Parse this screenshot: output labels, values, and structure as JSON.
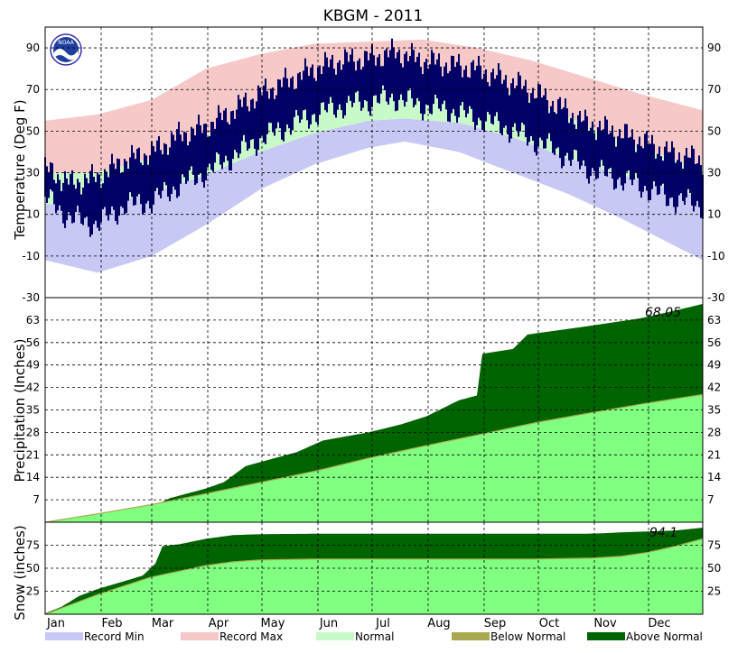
{
  "colors": {
    "record_min": "#c8c8f4",
    "record_max": "#f6c8c8",
    "normal": "#c8fac8",
    "observed": "#000066",
    "normal_precip": "#80ff80",
    "below_normal": "#a8a850",
    "above_normal": "#006400"
  },
  "logo": {
    "icon": "noaa-logo-icon",
    "text": "NOAA"
  },
  "chart_data": {
    "type": "area",
    "title": "KBGM - 2011",
    "months": [
      "Jan",
      "Feb",
      "Mar",
      "Apr",
      "May",
      "Jun",
      "Jul",
      "Aug",
      "Sep",
      "Oct",
      "Nov",
      "Dec"
    ],
    "temperature": {
      "ylabel": "Temperature (Deg F)",
      "ylim": [
        -30,
        100
      ],
      "yticks": [
        90,
        70,
        50,
        30,
        10,
        -10,
        -30
      ],
      "record_max": [
        {
          "day": 1,
          "value": 55
        },
        {
          "day": 30,
          "value": 58
        },
        {
          "day": 60,
          "value": 65
        },
        {
          "day": 90,
          "value": 80
        },
        {
          "day": 120,
          "value": 87
        },
        {
          "day": 150,
          "value": 92
        },
        {
          "day": 180,
          "value": 93
        },
        {
          "day": 210,
          "value": 94
        },
        {
          "day": 240,
          "value": 90
        },
        {
          "day": 270,
          "value": 84
        },
        {
          "day": 300,
          "value": 76
        },
        {
          "day": 330,
          "value": 68
        },
        {
          "day": 365,
          "value": 60
        }
      ],
      "normal_high": [
        {
          "day": 1,
          "value": 30
        },
        {
          "day": 30,
          "value": 30
        },
        {
          "day": 60,
          "value": 37
        },
        {
          "day": 90,
          "value": 48
        },
        {
          "day": 120,
          "value": 62
        },
        {
          "day": 150,
          "value": 71
        },
        {
          "day": 180,
          "value": 76
        },
        {
          "day": 200,
          "value": 78
        },
        {
          "day": 230,
          "value": 76
        },
        {
          "day": 260,
          "value": 68
        },
        {
          "day": 290,
          "value": 57
        },
        {
          "day": 320,
          "value": 45
        },
        {
          "day": 365,
          "value": 32
        }
      ],
      "normal_low": [
        {
          "day": 1,
          "value": 15
        },
        {
          "day": 30,
          "value": 14
        },
        {
          "day": 60,
          "value": 20
        },
        {
          "day": 90,
          "value": 29
        },
        {
          "day": 120,
          "value": 40
        },
        {
          "day": 150,
          "value": 49
        },
        {
          "day": 180,
          "value": 55
        },
        {
          "day": 200,
          "value": 56
        },
        {
          "day": 230,
          "value": 54
        },
        {
          "day": 260,
          "value": 47
        },
        {
          "day": 290,
          "value": 37
        },
        {
          "day": 320,
          "value": 29
        },
        {
          "day": 365,
          "value": 18
        }
      ],
      "record_min": [
        {
          "day": 1,
          "value": -12
        },
        {
          "day": 30,
          "value": -18
        },
        {
          "day": 60,
          "value": -10
        },
        {
          "day": 90,
          "value": 5
        },
        {
          "day": 120,
          "value": 22
        },
        {
          "day": 150,
          "value": 34
        },
        {
          "day": 180,
          "value": 42
        },
        {
          "day": 200,
          "value": 45
        },
        {
          "day": 230,
          "value": 40
        },
        {
          "day": 260,
          "value": 30
        },
        {
          "day": 290,
          "value": 20
        },
        {
          "day": 320,
          "value": 8
        },
        {
          "day": 365,
          "value": -12
        }
      ],
      "observed_high": [
        {
          "day": 1,
          "value": 32
        },
        {
          "day": 15,
          "value": 25
        },
        {
          "day": 30,
          "value": 28
        },
        {
          "day": 45,
          "value": 36
        },
        {
          "day": 60,
          "value": 40
        },
        {
          "day": 75,
          "value": 48
        },
        {
          "day": 90,
          "value": 52
        },
        {
          "day": 105,
          "value": 60
        },
        {
          "day": 120,
          "value": 68
        },
        {
          "day": 135,
          "value": 74
        },
        {
          "day": 150,
          "value": 80
        },
        {
          "day": 165,
          "value": 84
        },
        {
          "day": 180,
          "value": 85
        },
        {
          "day": 195,
          "value": 88
        },
        {
          "day": 210,
          "value": 84
        },
        {
          "day": 225,
          "value": 82
        },
        {
          "day": 240,
          "value": 80
        },
        {
          "day": 255,
          "value": 75
        },
        {
          "day": 270,
          "value": 70
        },
        {
          "day": 285,
          "value": 62
        },
        {
          "day": 300,
          "value": 54
        },
        {
          "day": 315,
          "value": 50
        },
        {
          "day": 330,
          "value": 46
        },
        {
          "day": 345,
          "value": 40
        },
        {
          "day": 365,
          "value": 36
        }
      ],
      "observed_low": [
        {
          "day": 1,
          "value": 18
        },
        {
          "day": 15,
          "value": 8
        },
        {
          "day": 30,
          "value": 5
        },
        {
          "day": 45,
          "value": 14
        },
        {
          "day": 60,
          "value": 16
        },
        {
          "day": 75,
          "value": 24
        },
        {
          "day": 90,
          "value": 30
        },
        {
          "day": 105,
          "value": 38
        },
        {
          "day": 120,
          "value": 46
        },
        {
          "day": 135,
          "value": 52
        },
        {
          "day": 150,
          "value": 58
        },
        {
          "day": 165,
          "value": 62
        },
        {
          "day": 180,
          "value": 64
        },
        {
          "day": 195,
          "value": 66
        },
        {
          "day": 210,
          "value": 62
        },
        {
          "day": 225,
          "value": 60
        },
        {
          "day": 240,
          "value": 56
        },
        {
          "day": 255,
          "value": 52
        },
        {
          "day": 270,
          "value": 46
        },
        {
          "day": 285,
          "value": 40
        },
        {
          "day": 300,
          "value": 32
        },
        {
          "day": 315,
          "value": 28
        },
        {
          "day": 330,
          "value": 24
        },
        {
          "day": 345,
          "value": 18
        },
        {
          "day": 365,
          "value": 14
        }
      ]
    },
    "precipitation": {
      "ylabel": "Precipitation (Inches)",
      "ylim": [
        0,
        70
      ],
      "yticks": [
        63,
        56,
        49,
        42,
        35,
        28,
        21,
        14,
        7
      ],
      "total_label": "68.05",
      "observed_cumulative": [
        {
          "day": 1,
          "value": 0
        },
        {
          "day": 15,
          "value": 0.8
        },
        {
          "day": 31,
          "value": 2.0
        },
        {
          "day": 45,
          "value": 3.8
        },
        {
          "day": 59,
          "value": 4.5
        },
        {
          "day": 70,
          "value": 7.5
        },
        {
          "day": 90,
          "value": 10.5
        },
        {
          "day": 100,
          "value": 12.5
        },
        {
          "day": 112,
          "value": 17.5
        },
        {
          "day": 125,
          "value": 19.5
        },
        {
          "day": 140,
          "value": 21.8
        },
        {
          "day": 155,
          "value": 25.5
        },
        {
          "day": 165,
          "value": 26.5
        },
        {
          "day": 180,
          "value": 28.0
        },
        {
          "day": 198,
          "value": 30.5
        },
        {
          "day": 212,
          "value": 33.0
        },
        {
          "day": 230,
          "value": 38.0
        },
        {
          "day": 240,
          "value": 39.5
        },
        {
          "day": 243,
          "value": 52.5
        },
        {
          "day": 260,
          "value": 54.0
        },
        {
          "day": 268,
          "value": 58.5
        },
        {
          "day": 300,
          "value": 61.0
        },
        {
          "day": 330,
          "value": 63.5
        },
        {
          "day": 350,
          "value": 66.0
        },
        {
          "day": 365,
          "value": 68.05
        }
      ],
      "normal_cumulative": [
        {
          "day": 1,
          "value": 0
        },
        {
          "day": 31,
          "value": 2.7
        },
        {
          "day": 59,
          "value": 5.4
        },
        {
          "day": 90,
          "value": 8.9
        },
        {
          "day": 120,
          "value": 12.4
        },
        {
          "day": 151,
          "value": 16.0
        },
        {
          "day": 181,
          "value": 20.1
        },
        {
          "day": 212,
          "value": 23.9
        },
        {
          "day": 243,
          "value": 27.5
        },
        {
          "day": 273,
          "value": 31.1
        },
        {
          "day": 304,
          "value": 34.2
        },
        {
          "day": 334,
          "value": 37.1
        },
        {
          "day": 365,
          "value": 39.8
        }
      ]
    },
    "snow": {
      "ylabel": "Snow (inches)",
      "ylim": [
        0,
        100
      ],
      "yticks": [
        75,
        50,
        25
      ],
      "total_label": "94.1",
      "observed_cumulative": [
        {
          "day": 1,
          "value": 1
        },
        {
          "day": 10,
          "value": 8
        },
        {
          "day": 20,
          "value": 20
        },
        {
          "day": 31,
          "value": 28
        },
        {
          "day": 45,
          "value": 36
        },
        {
          "day": 55,
          "value": 42
        },
        {
          "day": 62,
          "value": 55
        },
        {
          "day": 66,
          "value": 74
        },
        {
          "day": 75,
          "value": 76
        },
        {
          "day": 90,
          "value": 82
        },
        {
          "day": 105,
          "value": 86
        },
        {
          "day": 120,
          "value": 87
        },
        {
          "day": 150,
          "value": 87.5
        },
        {
          "day": 300,
          "value": 87.5
        },
        {
          "day": 310,
          "value": 88
        },
        {
          "day": 320,
          "value": 89
        },
        {
          "day": 335,
          "value": 90
        },
        {
          "day": 350,
          "value": 91
        },
        {
          "day": 365,
          "value": 94.1
        }
      ],
      "normal_cumulative": [
        {
          "day": 1,
          "value": 0
        },
        {
          "day": 31,
          "value": 22
        },
        {
          "day": 59,
          "value": 40
        },
        {
          "day": 90,
          "value": 53
        },
        {
          "day": 105,
          "value": 57
        },
        {
          "day": 120,
          "value": 59
        },
        {
          "day": 150,
          "value": 60
        },
        {
          "day": 273,
          "value": 60
        },
        {
          "day": 304,
          "value": 61
        },
        {
          "day": 320,
          "value": 63
        },
        {
          "day": 334,
          "value": 67
        },
        {
          "day": 350,
          "value": 74
        },
        {
          "day": 365,
          "value": 82
        }
      ]
    },
    "legend": [
      {
        "label": "Record Min",
        "color": "#c8c8f4"
      },
      {
        "label": "Record Max",
        "color": "#f6c8c8"
      },
      {
        "label": "Normal",
        "color": "#c8fac8"
      },
      {
        "label": "Below Normal",
        "color": "#a8a850"
      },
      {
        "label": "Above Normal",
        "color": "#006400"
      }
    ]
  }
}
